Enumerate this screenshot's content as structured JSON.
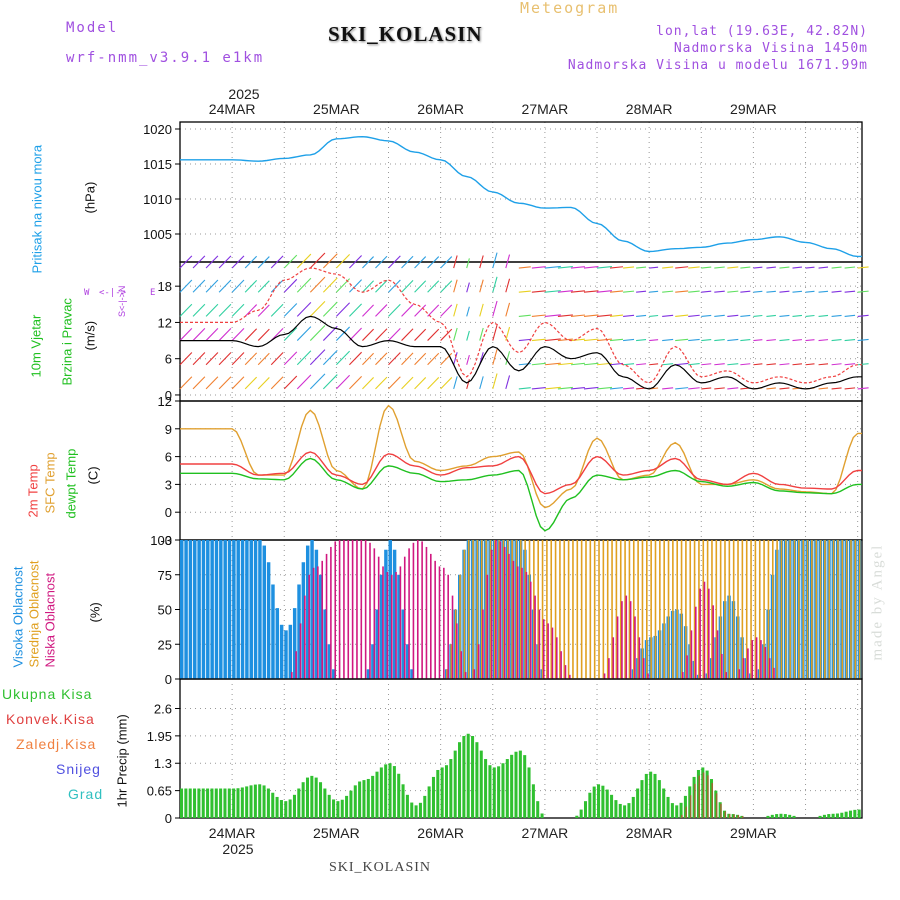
{
  "header": {
    "model_label": "Model",
    "model_name": "wrf-nmm_v3.9.1 e1km",
    "site_title": "SKI_KOLASIN",
    "product": "Meteogram",
    "lonlat": "lon,lat (19.63E, 42.82N)",
    "elevation": "Nadmorska Visina 1450m",
    "model_elevation": "Nadmorska Visina u modelu 1671.99m",
    "footer_site": "SKI_KOLASIN",
    "credit": "made by Angel"
  },
  "time_axis": {
    "year": "2025",
    "day_labels": [
      "24MAR",
      "25MAR",
      "26MAR",
      "27MAR",
      "28MAR",
      "29MAR"
    ]
  },
  "panel_labels": {
    "pressure": [
      "Pritisak na nivou mora",
      "(hPa)"
    ],
    "wind": [
      "10m Vjetar",
      "Brzina i Pravac",
      "(m/s)"
    ],
    "compass": [
      "W",
      "<-|->",
      "E",
      "S<-|->N"
    ],
    "temp": [
      "2m Temp",
      "SFC Temp",
      "dewpt Temp",
      "(C)"
    ],
    "cloud": [
      "Visoka Oblacnost",
      "Srednja Oblacnost",
      "Niska Oblacnost",
      "(%)"
    ],
    "precip_unit": "1hr Precip (mm)",
    "precip_legend": [
      "Ukupna Kisa",
      "Konvek.Kisa",
      "Zaledj.Kisa",
      "Snijeg",
      "Grad"
    ]
  },
  "colors": {
    "pressure": "#1ea0e8",
    "wind_speed": "#000000",
    "gust": "#f04040",
    "temp2m": "#f04040",
    "sfc": "#e0a030",
    "dewpt": "#20c020",
    "cloud_high": "#1e90e0",
    "cloud_mid": "#e0a020",
    "cloud_low": "#d01880",
    "precip_total": "#30c030",
    "precip_conv": "#e04040",
    "precip_frz": "#f08040",
    "precip_snow": "#5050e0",
    "precip_hail": "#30c0c0"
  },
  "chart_data": [
    {
      "type": "line",
      "name": "pressure",
      "ylabel": "Pritisak na nivou mora (hPa)",
      "ylim": [
        1001,
        1021
      ],
      "yticks": [
        1005,
        1010,
        1015,
        1020
      ],
      "x_hours": [
        0,
        6,
        12,
        18,
        24,
        30,
        36,
        42,
        48,
        54,
        60,
        66,
        72,
        78,
        84,
        90,
        96,
        102,
        108,
        114,
        120,
        126,
        132,
        138,
        144
      ],
      "values": [
        1015.6,
        1015.4,
        1015.8,
        1016.3,
        1018.6,
        1018.9,
        1018.3,
        1016.7,
        1015.6,
        1013.2,
        1011.0,
        1009.4,
        1008.7,
        1008.8,
        1006.5,
        1004.0,
        1002.5,
        1002.9,
        1003.1,
        1003.7,
        1004.2,
        1004.6,
        1003.8,
        1002.9,
        1001.8
      ]
    },
    {
      "type": "line",
      "name": "wind",
      "ylabel": "10m Vjetar Brzina i Pravac (m/s)",
      "ylim": [
        -1,
        22
      ],
      "yticks": [
        0,
        6,
        12,
        18
      ],
      "x_hours": [
        0,
        6,
        12,
        18,
        24,
        30,
        36,
        42,
        48,
        54,
        60,
        66,
        72,
        78,
        84,
        90,
        96,
        102,
        108,
        114,
        120,
        126,
        132,
        138,
        144
      ],
      "speed": [
        9,
        8,
        10,
        13,
        11,
        8,
        9,
        8,
        8,
        2,
        8,
        4,
        8,
        6,
        7,
        3,
        1,
        5,
        2,
        3,
        1,
        2,
        1,
        2,
        3
      ],
      "gust": [
        12,
        14,
        19,
        21,
        20,
        17,
        19,
        15,
        12,
        3,
        12,
        7,
        12,
        9,
        11,
        5,
        2,
        8,
        3,
        4,
        2,
        3,
        2,
        3,
        5
      ]
    },
    {
      "type": "line",
      "name": "temperature",
      "ylabel": "(C)",
      "ylim": [
        -3,
        12
      ],
      "yticks": [
        -3,
        0,
        3,
        6,
        9,
        12
      ],
      "x_hours": [
        0,
        6,
        12,
        18,
        24,
        30,
        36,
        42,
        48,
        54,
        60,
        66,
        72,
        78,
        84,
        90,
        96,
        102,
        108,
        114,
        120,
        126,
        132,
        138,
        144
      ],
      "series": [
        {
          "name": "2m Temp",
          "values": [
            5.2,
            4.0,
            4.2,
            6.5,
            4.0,
            3.0,
            6.3,
            5.0,
            4.0,
            4.8,
            5.0,
            6.0,
            2.0,
            3.0,
            6.0,
            4.0,
            4.5,
            5.8,
            3.5,
            3.0,
            4.2,
            3.0,
            2.6,
            2.5,
            4.5
          ]
        },
        {
          "name": "SFC Temp",
          "values": [
            9.0,
            4.0,
            4.0,
            11.0,
            4.5,
            2.5,
            11.5,
            5.5,
            4.5,
            5.0,
            6.0,
            6.5,
            0.5,
            2.5,
            8.0,
            3.5,
            4.0,
            7.5,
            3.0,
            3.0,
            3.5,
            2.5,
            2.2,
            2.0,
            8.5
          ]
        },
        {
          "name": "dewpt Temp",
          "values": [
            4.2,
            3.6,
            3.5,
            5.8,
            3.5,
            2.5,
            5.0,
            4.2,
            3.3,
            3.5,
            4.0,
            4.5,
            -2.0,
            1.5,
            4.0,
            3.5,
            3.8,
            4.5,
            3.3,
            2.8,
            3.2,
            2.3,
            2.1,
            2.0,
            3.0
          ]
        }
      ]
    },
    {
      "type": "bar",
      "name": "cloud_cover",
      "ylabel": "(%)",
      "ylim": [
        0,
        100
      ],
      "yticks": [
        0,
        25,
        50,
        75,
        100
      ],
      "x_hours": [
        0,
        6,
        12,
        18,
        24,
        30,
        36,
        42,
        48,
        54,
        60,
        66,
        72,
        78,
        84,
        90,
        96,
        102,
        108,
        114,
        120,
        126,
        132,
        138,
        144
      ],
      "series": [
        {
          "name": "Visoka Oblacnost",
          "values": [
            100,
            100,
            35,
            100,
            0,
            0,
            100,
            0,
            0,
            100,
            100,
            100,
            0,
            0,
            0,
            0,
            30,
            50,
            0,
            60,
            0,
            100,
            100,
            100,
            100
          ]
        },
        {
          "name": "Srednja Oblacnost",
          "values": [
            0,
            0,
            0,
            0,
            0,
            0,
            0,
            0,
            0,
            100,
            100,
            100,
            100,
            100,
            100,
            100,
            100,
            100,
            100,
            100,
            100,
            100,
            100,
            100,
            100
          ]
        },
        {
          "name": "Niska Oblacnost",
          "values": [
            0,
            0,
            0,
            80,
            100,
            100,
            75,
            100,
            80,
            0,
            100,
            80,
            40,
            0,
            0,
            60,
            0,
            0,
            70,
            0,
            30,
            0,
            0,
            0,
            0
          ]
        }
      ]
    },
    {
      "type": "bar",
      "name": "precipitation",
      "ylabel": "1hr Precip (mm)",
      "ylim": [
        0,
        3.3
      ],
      "yticks": [
        0,
        0.65,
        1.3,
        1.95,
        2.6
      ],
      "x_hours": [
        0,
        6,
        12,
        18,
        24,
        30,
        36,
        42,
        48,
        54,
        60,
        66,
        72,
        78,
        84,
        90,
        96,
        102,
        108,
        114,
        120,
        126,
        132,
        138,
        144
      ],
      "series": [
        {
          "name": "Ukupna Kisa",
          "values": [
            0.7,
            0.8,
            0.4,
            1.0,
            0.4,
            0.9,
            1.3,
            0.3,
            1.2,
            2.0,
            1.2,
            1.6,
            0.0,
            0.0,
            0.8,
            0.3,
            1.1,
            0.3,
            1.2,
            0.1,
            0.0,
            0.1,
            0.0,
            0.1,
            0.2
          ]
        },
        {
          "name": "Konvek.Kisa",
          "values": [
            0,
            0,
            0,
            0,
            0,
            0,
            0,
            0,
            0,
            0,
            0,
            0,
            0,
            0,
            0,
            0,
            0,
            0,
            1.2,
            0.1,
            0,
            0,
            0,
            0,
            0
          ]
        }
      ]
    }
  ]
}
